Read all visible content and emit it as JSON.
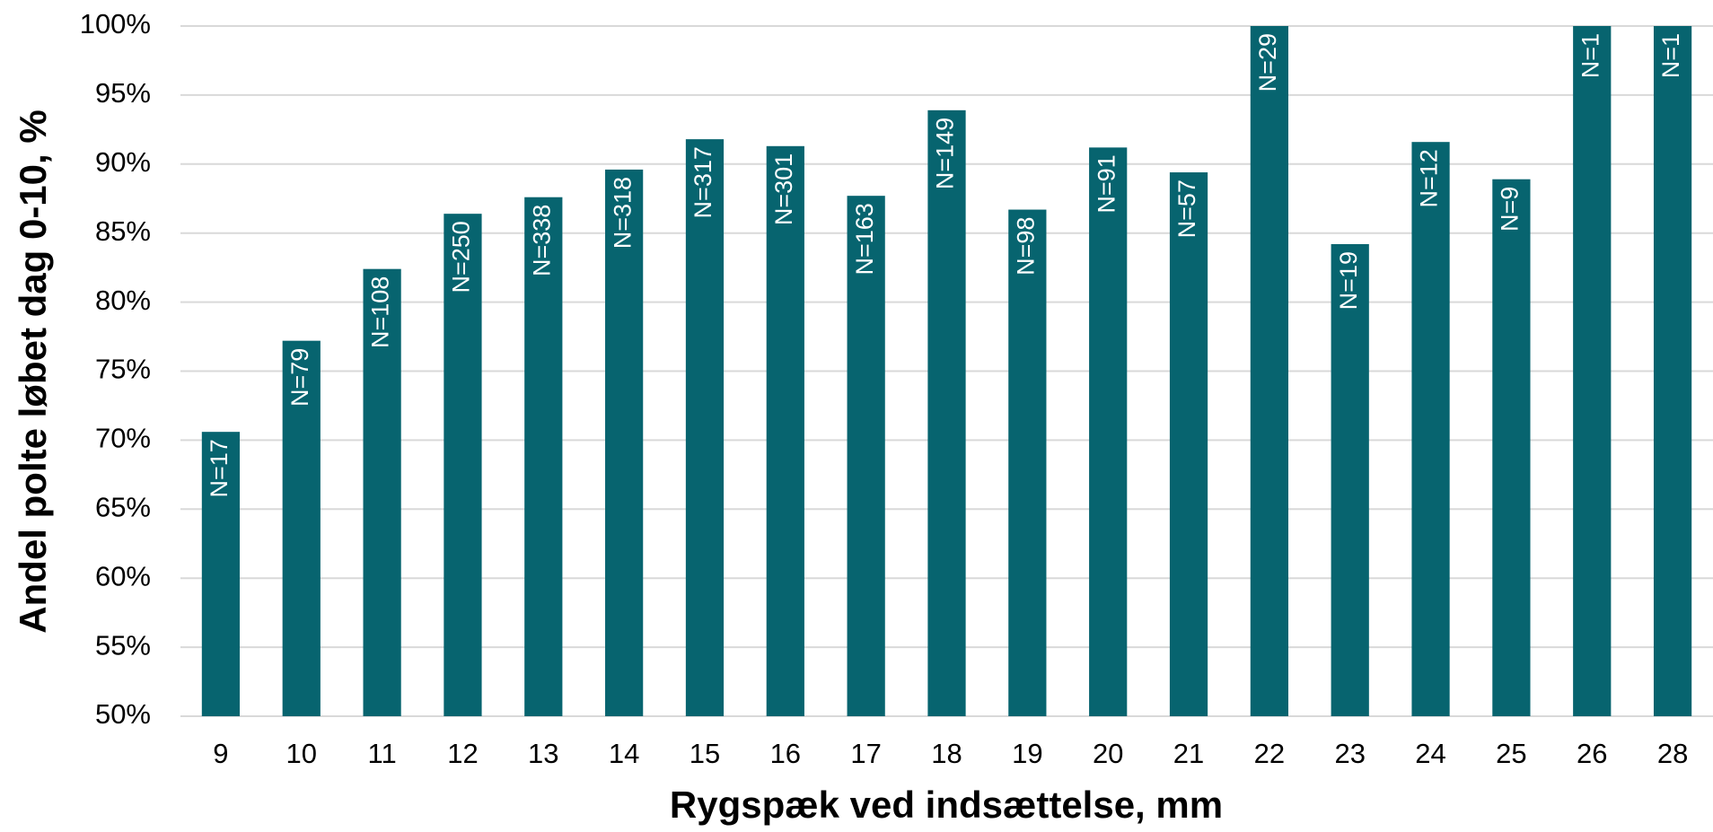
{
  "chart_data": {
    "type": "bar",
    "x_label": "Rygspæk ved indsættelse, mm",
    "y_label": "Andel polte løbet dag 0-10, %",
    "categories": [
      "9",
      "10",
      "11",
      "12",
      "13",
      "14",
      "15",
      "16",
      "17",
      "18",
      "19",
      "20",
      "21",
      "22",
      "23",
      "24",
      "25",
      "26",
      "28"
    ],
    "values": [
      70.6,
      77.2,
      82.4,
      86.4,
      87.6,
      89.6,
      91.8,
      91.3,
      87.7,
      93.9,
      86.7,
      91.2,
      89.4,
      100,
      84.2,
      91.6,
      88.9,
      100,
      100
    ],
    "bar_labels": [
      "N=17",
      "N=79",
      "N=108",
      "N=250",
      "N=338",
      "N=318",
      "N=317",
      "N=301",
      "N=163",
      "N=149",
      "N=98",
      "N=91",
      "N=57",
      "N=29",
      "N=19",
      "N=12",
      "N=9",
      "N=1",
      "N=1"
    ],
    "color": "#07646f",
    "ylim": [
      50,
      100
    ],
    "yticks": [
      {
        "value": 50,
        "label": "50%"
      },
      {
        "value": 55,
        "label": "55%"
      },
      {
        "value": 60,
        "label": "60%"
      },
      {
        "value": 65,
        "label": "65%"
      },
      {
        "value": 70,
        "label": "70%"
      },
      {
        "value": 75,
        "label": "75%"
      },
      {
        "value": 80,
        "label": "80%"
      },
      {
        "value": 85,
        "label": "85%"
      },
      {
        "value": 90,
        "label": "90%"
      },
      {
        "value": 95,
        "label": "95%"
      },
      {
        "value": 100,
        "label": "100%"
      }
    ],
    "grid": true
  }
}
